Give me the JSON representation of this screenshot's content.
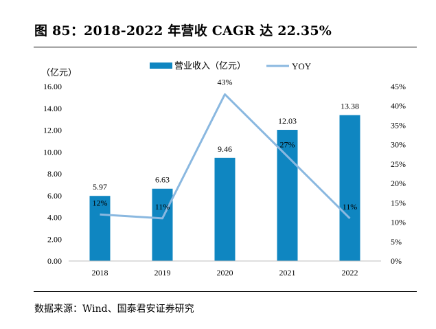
{
  "figure": {
    "title": "图 85：2018-2022 年营收 CAGR 达 22.35%",
    "source": "数据来源：Wind、国泰君安证券研究"
  },
  "chart_data": {
    "type": "bar",
    "categories": [
      "2018",
      "2019",
      "2020",
      "2021",
      "2022"
    ],
    "y_left_unit": "（亿元）",
    "ylim": [
      0,
      16
    ],
    "y_left_ticks": [
      "0.00",
      "2.00",
      "4.00",
      "6.00",
      "8.00",
      "10.00",
      "12.00",
      "14.00",
      "16.00"
    ],
    "y_right_lim": [
      0,
      45
    ],
    "y_right_ticks": [
      "0%",
      "5%",
      "10%",
      "15%",
      "20%",
      "25%",
      "30%",
      "35%",
      "40%",
      "45%"
    ],
    "legend_position": "top-center",
    "grid": false,
    "series": [
      {
        "name": "营业收入（亿元）",
        "kind": "bar",
        "axis": "left",
        "color": "#0f86c1",
        "values": [
          5.97,
          6.63,
          9.46,
          12.03,
          13.38
        ],
        "labels": [
          "5.97",
          "6.63",
          "9.46",
          "12.03",
          "13.38"
        ]
      },
      {
        "name": "YOY",
        "kind": "line",
        "axis": "right",
        "color": "#8ab8e0",
        "values": [
          12,
          11,
          43,
          27,
          11
        ],
        "labels": [
          "12%",
          "11%",
          "43%",
          "27%",
          "11%"
        ]
      }
    ]
  }
}
